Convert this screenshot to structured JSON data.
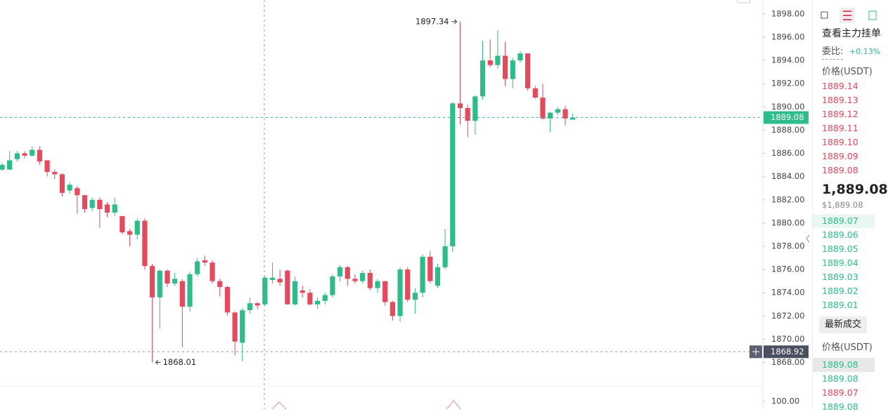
{
  "chart_data": {
    "type": "candlestick",
    "open": [
      1884.6,
      1884.6,
      1885.5,
      1886.0,
      1885.8,
      1886.3,
      1885.4,
      1884.4,
      1884.2,
      1882.8,
      1883.0,
      1882.4,
      1881.3,
      1882.0,
      1881.6,
      1880.9,
      1880.6,
      1879.3,
      1879.0,
      1880.2,
      1876.3,
      1873.6,
      1875.9,
      1874.8,
      1875.0,
      1872.8,
      1875.6,
      1876.8,
      1876.6,
      1875.0,
      1874.5,
      1872.3,
      1869.7,
      1872.5,
      1873.1,
      1873.0,
      1875.1,
      1875.2,
      1875.9,
      1873.0,
      1874.2,
      1874.0,
      1873.0,
      1873.3,
      1873.8,
      1875.4,
      1876.2,
      1875.2,
      1875.0,
      1875.7,
      1874.4,
      1875.0,
      1873.2,
      1872.0,
      1876.0,
      1873.4,
      1874.0,
      1877.1,
      1874.6,
      1876.2,
      1878.0,
      1890.3,
      1889.9,
      1888.8,
      1890.9,
      1894.0,
      1893.6,
      1894.4,
      1892.4,
      1894.0,
      1894.6,
      1891.6,
      1890.8,
      1889.0,
      1889.5,
      1889.8,
      1888.9
    ],
    "high": [
      1885.2,
      1886.2,
      1886.2,
      1886.2,
      1886.6,
      1886.6,
      1885.4,
      1884.6,
      1884.3,
      1883.5,
      1883.2,
      1882.4,
      1882.2,
      1882.2,
      1881.8,
      1882.2,
      1880.6,
      1879.5,
      1880.4,
      1880.4,
      1876.5,
      1876.0,
      1876.0,
      1875.7,
      1875.2,
      1875.8,
      1877.0,
      1877.2,
      1876.8,
      1875.2,
      1874.6,
      1872.4,
      1872.7,
      1873.6,
      1873.2,
      1875.4,
      1876.6,
      1876.0,
      1876.0,
      1875.4,
      1874.6,
      1874.3,
      1873.6,
      1874.0,
      1875.6,
      1876.4,
      1876.3,
      1875.6,
      1875.9,
      1876.0,
      1875.2,
      1875.0,
      1873.3,
      1876.2,
      1876.2,
      1874.4,
      1877.3,
      1877.6,
      1876.5,
      1879.5,
      1890.4,
      1897.34,
      1890.2,
      1891.0,
      1895.7,
      1895.8,
      1896.6,
      1895.6,
      1894.2,
      1894.8,
      1894.6,
      1891.8,
      1892.0,
      1889.6,
      1890.0,
      1890.1,
      1889.4
    ],
    "low": [
      1884.5,
      1884.6,
      1885.3,
      1885.6,
      1885.7,
      1885.0,
      1884.0,
      1883.8,
      1882.3,
      1882.5,
      1880.8,
      1880.9,
      1881.0,
      1879.6,
      1880.5,
      1880.6,
      1879.0,
      1878.0,
      1878.6,
      1876.0,
      1868.01,
      1870.9,
      1874.5,
      1874.6,
      1869.3,
      1872.4,
      1875.4,
      1876.3,
      1874.8,
      1873.7,
      1872.0,
      1868.6,
      1868.1,
      1872.2,
      1872.6,
      1872.9,
      1874.8,
      1874.6,
      1873.0,
      1872.9,
      1873.6,
      1872.9,
      1872.6,
      1873.0,
      1873.6,
      1875.0,
      1874.6,
      1874.8,
      1874.8,
      1874.2,
      1874.0,
      1872.9,
      1871.6,
      1871.5,
      1873.2,
      1872.2,
      1873.6,
      1874.8,
      1874.4,
      1876.0,
      1877.5,
      1888.5,
      1887.4,
      1887.6,
      1890.6,
      1893.4,
      1893.3,
      1891.8,
      1891.6,
      1893.8,
      1891.4,
      1890.7,
      1888.9,
      1887.8,
      1889.3,
      1888.4,
      1888.9
    ],
    "close": [
      1885.0,
      1885.4,
      1886.0,
      1885.8,
      1886.3,
      1885.3,
      1884.4,
      1884.2,
      1882.6,
      1883.3,
      1882.4,
      1881.2,
      1882.0,
      1881.2,
      1880.9,
      1881.6,
      1879.2,
      1879.0,
      1880.2,
      1876.3,
      1873.6,
      1875.9,
      1874.8,
      1875.2,
      1872.8,
      1875.6,
      1876.7,
      1876.6,
      1875.0,
      1874.5,
      1872.3,
      1869.8,
      1872.5,
      1873.1,
      1872.9,
      1875.3,
      1875.3,
      1874.9,
      1873.0,
      1875.0,
      1874.0,
      1873.0,
      1873.3,
      1873.8,
      1875.4,
      1876.2,
      1875.2,
      1875.0,
      1875.7,
      1874.4,
      1875.0,
      1873.2,
      1872.0,
      1876.0,
      1873.4,
      1874.0,
      1877.1,
      1875.0,
      1876.2,
      1878.0,
      1890.3,
      1889.9,
      1888.8,
      1890.9,
      1894.0,
      1893.6,
      1894.4,
      1892.4,
      1894.0,
      1894.6,
      1891.6,
      1890.8,
      1889.0,
      1889.5,
      1889.8,
      1889.0,
      1889.08
    ],
    "up_color": "#2dbd8a",
    "down_color": "#e8475c",
    "ylim": [
      1866.1,
      1899.2
    ],
    "yticks": [
      {
        "value": 1868,
        "label": "1868.00"
      },
      {
        "value": 1870,
        "label": "1870.00"
      },
      {
        "value": 1872,
        "label": "1872.00"
      },
      {
        "value": 1874,
        "label": "1874.00"
      },
      {
        "value": 1876,
        "label": "1876.00"
      },
      {
        "value": 1878,
        "label": "1878.00"
      },
      {
        "value": 1880,
        "label": "1880.00"
      },
      {
        "value": 1882,
        "label": "1882.00"
      },
      {
        "value": 1884,
        "label": "1884.00"
      },
      {
        "value": 1886,
        "label": "1886.00"
      },
      {
        "value": 1888,
        "label": "1888.00"
      },
      {
        "value": 1890,
        "label": "1890.00"
      },
      {
        "value": 1892,
        "label": "1892.00"
      },
      {
        "value": 1894,
        "label": "1894.00"
      },
      {
        "value": 1896,
        "label": "1896.00"
      },
      {
        "value": 1898,
        "label": "1898.00"
      }
    ],
    "high_annotation": {
      "value": 1897.34,
      "label": "1897.34"
    },
    "low_annotation": {
      "value": 1868.01,
      "label": "1868.01"
    },
    "last_price": {
      "value": 1889.08,
      "label": "1889.08"
    },
    "crosshair_price": {
      "value": 1868.92,
      "label": "1868.92"
    },
    "lower_pane_tick": {
      "value": 100,
      "label": "100.00"
    }
  },
  "order_book": {
    "title": "查看主力挂单",
    "ratio_label": "委比:",
    "ratio": "+0.13%",
    "price_header": "价格(USDT)",
    "asks": [
      "1889.14",
      "1889.13",
      "1889.12",
      "1889.11",
      "1889.10",
      "1889.09",
      "1889.08"
    ],
    "last": "1,889.08",
    "last_usd": "$1,889.08",
    "bids": [
      "1889.07",
      "1889.06",
      "1889.05",
      "1889.04",
      "1889.03",
      "1889.02",
      "1889.01"
    ],
    "trades_button": "最新成交",
    "trades_header": "价格(USDT)",
    "trades": [
      {
        "price": "1889.08",
        "side": "buy"
      },
      {
        "price": "1889.08",
        "side": "buy"
      },
      {
        "price": "1889.07",
        "side": "sell"
      },
      {
        "price": "1889.08",
        "side": "buy"
      }
    ]
  }
}
